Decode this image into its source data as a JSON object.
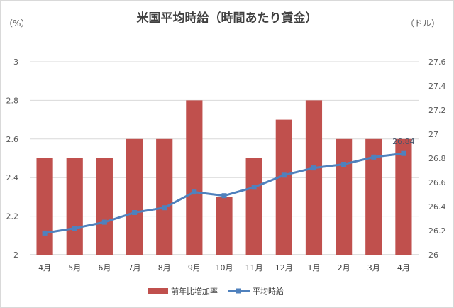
{
  "chart_data": {
    "type": "bar",
    "title": "米国平均時給（時間あたり賃金）",
    "left_unit": "（%）",
    "right_unit": "（ドル）",
    "categories": [
      "4月",
      "5月",
      "6月",
      "7月",
      "8月",
      "9月",
      "10月",
      "11月",
      "12月",
      "1月",
      "2月",
      "3月",
      "4月"
    ],
    "series": [
      {
        "name": "前年比増加率",
        "type": "bar",
        "axis": "left",
        "color": "#c0504d",
        "values": [
          2.5,
          2.5,
          2.5,
          2.6,
          2.6,
          2.8,
          2.3,
          2.5,
          2.7,
          2.8,
          2.6,
          2.6,
          2.6
        ]
      },
      {
        "name": "平均時給",
        "type": "line",
        "axis": "right",
        "color": "#4f81bd",
        "values": [
          26.18,
          26.22,
          26.27,
          26.35,
          26.39,
          26.52,
          26.49,
          26.56,
          26.66,
          26.72,
          26.75,
          26.81,
          26.84
        ]
      }
    ],
    "left_axis": {
      "ylim": [
        2,
        3
      ],
      "ticks": [
        "2",
        "2.2",
        "2.4",
        "2.6",
        "2.8",
        "3"
      ]
    },
    "right_axis": {
      "ylim": [
        26,
        27.6
      ],
      "ticks": [
        "26",
        "26.2",
        "26.4",
        "26.6",
        "26.8",
        "27",
        "27.2",
        "27.4",
        "27.6"
      ]
    },
    "data_labels": [
      {
        "series": 1,
        "index": 12,
        "text": "26.84"
      }
    ],
    "legend": {
      "position": "bottom"
    },
    "grid": true
  }
}
